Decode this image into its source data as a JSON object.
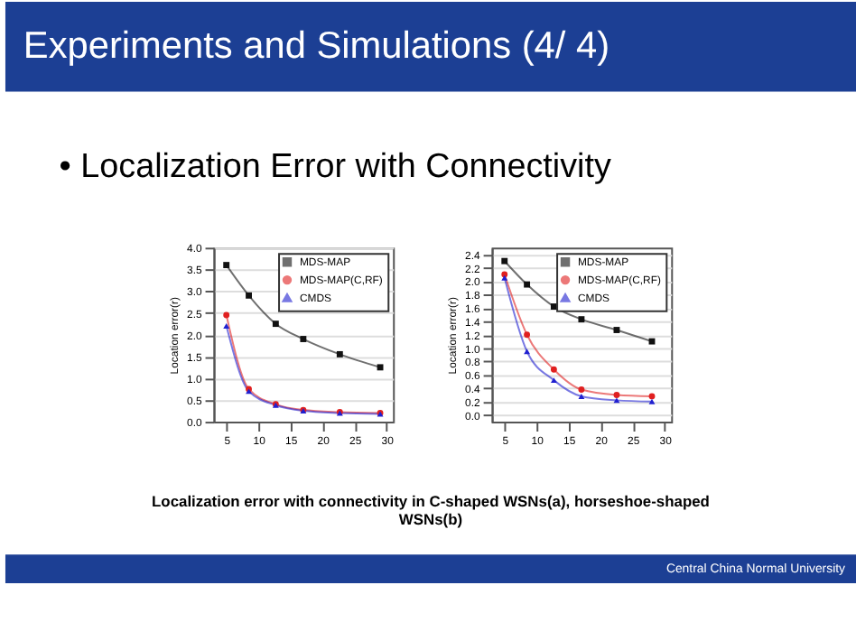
{
  "chart_data": [
    {
      "type": "line",
      "title": "Experiments and Simulations (4/ 4)",
      "subtitle": "•  Localization Error with Connectivity",
      "annotations": [
        "Localization error with connectivity in C-shaped WSNs(a), horseshoe-shaped WSNs(b)",
        "Central China Normal University"
      ],
      "ylabel": "Location error(r)",
      "x": [
        5,
        8.5,
        12.7,
        17,
        22.7,
        29
      ],
      "xlim": [
        3,
        31
      ],
      "xticks": [
        5,
        10,
        15,
        20,
        25,
        30
      ],
      "ylim": [
        0,
        4
      ],
      "yticks": [
        {
          "value": 0,
          "label": "0.0"
        },
        {
          "value": 0.5,
          "label": "0.5"
        },
        {
          "value": 1,
          "label": "1.0"
        },
        {
          "value": 1.5,
          "label": "1.5"
        },
        {
          "value": 2,
          "label": "2.0"
        },
        {
          "value": 2.5,
          "label": "2.5"
        },
        {
          "value": 3,
          "label": "3.0"
        },
        {
          "value": 3.5,
          "label": "3.5"
        },
        {
          "value": 4,
          "label": "4.0"
        }
      ],
      "grid": "y",
      "legend": "top right",
      "series": [
        {
          "name": "MDS-MAP",
          "color": "#111111",
          "marker": "square",
          "values": [
            3.6,
            2.9,
            2.25,
            1.9,
            1.55,
            1.25
          ]
        },
        {
          "name": "MDS-MAP(C,RF)",
          "color": "#e02020",
          "marker": "circle",
          "values": [
            2.45,
            0.75,
            0.4,
            0.27,
            0.22,
            0.2
          ]
        },
        {
          "name": "CMDS",
          "color": "#2020d0",
          "marker": "triangle",
          "values": [
            2.2,
            0.7,
            0.38,
            0.25,
            0.2,
            0.18
          ]
        }
      ]
    },
    {
      "type": "line",
      "ylabel": "Location error(r)",
      "x": [
        5,
        8.5,
        12.7,
        17,
        22.5,
        28
      ],
      "xlim": [
        3,
        31
      ],
      "xticks": [
        5,
        10,
        15,
        20,
        25,
        30
      ],
      "ylim": [
        -0.1,
        2.5
      ],
      "yticks": [
        {
          "value": 0,
          "label": "0.0"
        },
        {
          "value": 0.2,
          "label": "0.2"
        },
        {
          "value": 0.4,
          "label": "0.4"
        },
        {
          "value": 0.6,
          "label": "0.6"
        },
        {
          "value": 0.8,
          "label": "0.8"
        },
        {
          "value": 1,
          "label": "1.0"
        },
        {
          "value": 1.2,
          "label": "1.2"
        },
        {
          "value": 1.4,
          "label": "1.4"
        },
        {
          "value": 1.6,
          "label": "1.6"
        },
        {
          "value": 1.8,
          "label": "1.8"
        },
        {
          "value": 2,
          "label": "2.0"
        },
        {
          "value": 2.2,
          "label": "2.2"
        },
        {
          "value": 2.4,
          "label": "2.4"
        }
      ],
      "grid": "y",
      "legend": "top right",
      "series": [
        {
          "name": "MDS-MAP",
          "color": "#111111",
          "marker": "square",
          "values": [
            2.3,
            1.95,
            1.62,
            1.43,
            1.27,
            1.1
          ]
        },
        {
          "name": "MDS-MAP(C,RF)",
          "color": "#e02020",
          "marker": "circle",
          "values": [
            2.1,
            1.2,
            0.68,
            0.38,
            0.3,
            0.28
          ]
        },
        {
          "name": "CMDS",
          "color": "#2020d0",
          "marker": "triangle",
          "values": [
            2.05,
            0.95,
            0.52,
            0.28,
            0.22,
            0.2
          ]
        }
      ]
    }
  ]
}
